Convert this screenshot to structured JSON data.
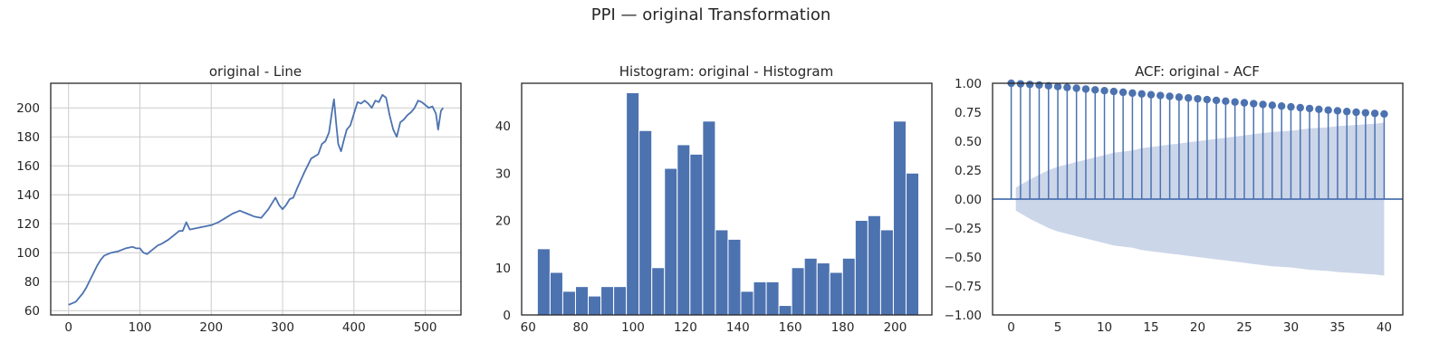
{
  "figure": {
    "title": "PPI — original Transformation",
    "colors": {
      "series": "#4c72b0",
      "band": "#ccd6e9",
      "grid": "#cccccc",
      "frame": "#262626"
    }
  },
  "chart_data": [
    {
      "type": "line",
      "title": "original - Line",
      "xlabel": "",
      "ylabel": "",
      "xlim": [
        -25,
        550
      ],
      "ylim": [
        57,
        217
      ],
      "xticks": [
        0,
        100,
        200,
        300,
        400,
        500
      ],
      "yticks": [
        60,
        80,
        100,
        120,
        140,
        160,
        180,
        200
      ],
      "grid": true,
      "series": [
        {
          "x": [
            0,
            5,
            10,
            15,
            20,
            25,
            30,
            35,
            40,
            45,
            50,
            55,
            60,
            70,
            80,
            90,
            95,
            100,
            105,
            110,
            115,
            120,
            125,
            130,
            140,
            150,
            155,
            160,
            165,
            170,
            180,
            190,
            200,
            210,
            220,
            230,
            235,
            240,
            250,
            260,
            270,
            280,
            285,
            290,
            295,
            300,
            305,
            310,
            315,
            320,
            330,
            340,
            350,
            355,
            360,
            365,
            370,
            372,
            375,
            378,
            382,
            386,
            390,
            395,
            400,
            405,
            410,
            415,
            420,
            425,
            430,
            435,
            440,
            445,
            450,
            455,
            460,
            465,
            470,
            475,
            480,
            485,
            490,
            495,
            500,
            505,
            510,
            515,
            518,
            522,
            525
          ],
          "y": [
            64,
            65,
            66,
            69,
            72,
            76,
            81,
            86,
            91,
            95,
            98,
            99,
            100,
            101,
            103,
            104,
            103,
            103,
            100,
            99,
            101,
            103,
            105,
            106,
            109,
            113,
            115,
            115,
            121,
            116,
            117,
            118,
            119,
            121,
            124,
            127,
            128,
            129,
            127,
            125,
            124,
            130,
            134,
            138,
            133,
            130,
            133,
            137,
            138,
            144,
            155,
            165,
            168,
            175,
            177,
            183,
            200,
            206,
            190,
            175,
            170,
            178,
            185,
            188,
            196,
            204,
            203,
            205,
            203,
            200,
            205,
            204,
            209,
            207,
            195,
            185,
            180,
            190,
            192,
            195,
            197,
            200,
            205,
            204,
            202,
            200,
            201,
            196,
            185,
            198,
            200
          ]
        }
      ]
    },
    {
      "type": "bar",
      "title": "Histogram: original - Histogram",
      "xlabel": "",
      "ylabel": "",
      "xlim": [
        57.5,
        214
      ],
      "ylim": [
        0,
        49
      ],
      "xticks": [
        60,
        80,
        100,
        120,
        140,
        160,
        180,
        200
      ],
      "yticks": [
        0,
        10,
        20,
        30,
        40
      ],
      "grid": false,
      "bin_start": 63.5,
      "bin_width": 4.85,
      "values": [
        14,
        9,
        5,
        6,
        4,
        6,
        6,
        47,
        39,
        10,
        31,
        36,
        34,
        41,
        18,
        16,
        5,
        7,
        7,
        2,
        10,
        12,
        11,
        9,
        12,
        20,
        21,
        18,
        41,
        30
      ]
    },
    {
      "type": "stem",
      "title": "ACF: original - ACF",
      "xlabel": "",
      "ylabel": "",
      "xlim": [
        -2,
        42
      ],
      "ylim": [
        -1,
        1
      ],
      "xticks": [
        0,
        5,
        10,
        15,
        20,
        25,
        30,
        35,
        40
      ],
      "yticks": [
        "1.00",
        "0.75",
        "0.50",
        "0.25",
        "0.00",
        "−0.25",
        "−0.50",
        "−0.75",
        "−1.00"
      ],
      "ytick_values": [
        1,
        0.75,
        0.5,
        0.25,
        0,
        -0.25,
        -0.5,
        -0.75,
        -1
      ],
      "grid": false,
      "lags": [
        0,
        1,
        2,
        3,
        4,
        5,
        6,
        7,
        8,
        9,
        10,
        11,
        12,
        13,
        14,
        15,
        16,
        17,
        18,
        19,
        20,
        21,
        22,
        23,
        24,
        25,
        26,
        27,
        28,
        29,
        30,
        31,
        32,
        33,
        34,
        35,
        36,
        37,
        38,
        39,
        40
      ],
      "values": [
        1.0,
        0.995,
        0.99,
        0.985,
        0.978,
        0.971,
        0.964,
        0.957,
        0.95,
        0.943,
        0.936,
        0.929,
        0.922,
        0.915,
        0.908,
        0.901,
        0.894,
        0.887,
        0.88,
        0.873,
        0.866,
        0.859,
        0.852,
        0.845,
        0.838,
        0.831,
        0.824,
        0.817,
        0.81,
        0.803,
        0.796,
        0.789,
        0.782,
        0.775,
        0.768,
        0.762,
        0.756,
        0.75,
        0.745,
        0.74,
        0.735
      ],
      "confidence_upper": [
        0.0,
        0.1,
        0.17,
        0.21,
        0.25,
        0.28,
        0.3,
        0.32,
        0.34,
        0.36,
        0.38,
        0.4,
        0.41,
        0.42,
        0.44,
        0.45,
        0.46,
        0.47,
        0.48,
        0.49,
        0.5,
        0.51,
        0.52,
        0.53,
        0.54,
        0.55,
        0.56,
        0.57,
        0.58,
        0.585,
        0.59,
        0.6,
        0.61,
        0.615,
        0.62,
        0.63,
        0.635,
        0.64,
        0.645,
        0.65,
        0.66
      ]
    }
  ]
}
